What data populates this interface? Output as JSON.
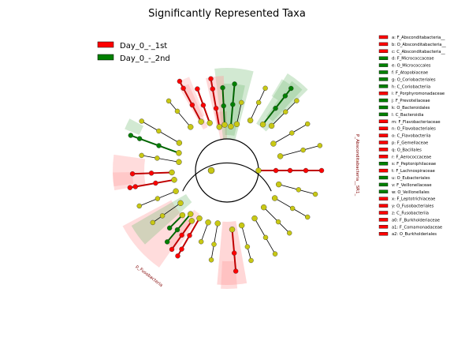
{
  "chart_data": {
    "type": "cladogram",
    "title": "Significantly Represented Taxa",
    "groups": [
      {
        "name": "Day_0_-_1st",
        "color": "#ff0000",
        "shade": "#ff9a9a"
      },
      {
        "name": "Day_0_-_2nd",
        "color": "#008000",
        "shade": "#7ec07e"
      }
    ],
    "node_default_color": "#c8c814",
    "key": [
      {
        "letter": "a",
        "name": "F_Absconditabacteria__",
        "group": 0
      },
      {
        "letter": "b",
        "name": "O_Absconditabacteria__",
        "group": 0
      },
      {
        "letter": "c",
        "name": "C_Absconditabacteria__",
        "group": 0
      },
      {
        "letter": "d",
        "name": "F_Micrococcaceae",
        "group": 1
      },
      {
        "letter": "e",
        "name": "O_Micrococcales",
        "group": 1
      },
      {
        "letter": "f",
        "name": "F_Atopobiaceae",
        "group": 1
      },
      {
        "letter": "g",
        "name": "O_Coriobacteriales",
        "group": 1
      },
      {
        "letter": "h",
        "name": "C_Coriobacteriia",
        "group": 1
      },
      {
        "letter": "i",
        "name": "F_Porphyromonadaceae",
        "group": 0
      },
      {
        "letter": "j",
        "name": "F_Prevotellaceae",
        "group": 1
      },
      {
        "letter": "k",
        "name": "O_Bacteroidales",
        "group": 1
      },
      {
        "letter": "l",
        "name": "C_Bacteroidia",
        "group": 1
      },
      {
        "letter": "m",
        "name": "F_Flavobacteriaceae",
        "group": 0
      },
      {
        "letter": "n",
        "name": "O_Flavobacteriales",
        "group": 0
      },
      {
        "letter": "o",
        "name": "C_Flavobacteriia",
        "group": 0
      },
      {
        "letter": "p",
        "name": "F_Gemellaceae",
        "group": 0
      },
      {
        "letter": "q",
        "name": "O_Bacillales",
        "group": 0
      },
      {
        "letter": "r",
        "name": "F_Aerococcaceae",
        "group": 0
      },
      {
        "letter": "s",
        "name": "F_Peptoniphilaceae",
        "group": 1
      },
      {
        "letter": "t",
        "name": "F_Lachnospiraceae",
        "group": 0
      },
      {
        "letter": "u",
        "name": "O_Eubacteriales",
        "group": 1
      },
      {
        "letter": "v",
        "name": "F_Veillonellaceae",
        "group": 1
      },
      {
        "letter": "w",
        "name": "O_Veillonellales",
        "group": 1
      },
      {
        "letter": "x",
        "name": "F_Leptotrichiaceae",
        "group": 0
      },
      {
        "letter": "y",
        "name": "O_Fusobacteriales",
        "group": 0
      },
      {
        "letter": "z",
        "name": "C_Fusobacteriia",
        "group": 0
      },
      {
        "letter": "a0",
        "name": "F_Burkholderiaceae",
        "group": 0
      },
      {
        "letter": "a1",
        "name": "F_Comamonadaceae",
        "group": 0
      },
      {
        "letter": "a2",
        "name": "O_Burkholderiales",
        "group": 0
      }
    ],
    "clade_labels": [
      {
        "text": "P_Absconditabacteria__SR1_",
        "group": 0
      },
      {
        "text": "p_Fusobacteria",
        "group": 0
      }
    ]
  }
}
